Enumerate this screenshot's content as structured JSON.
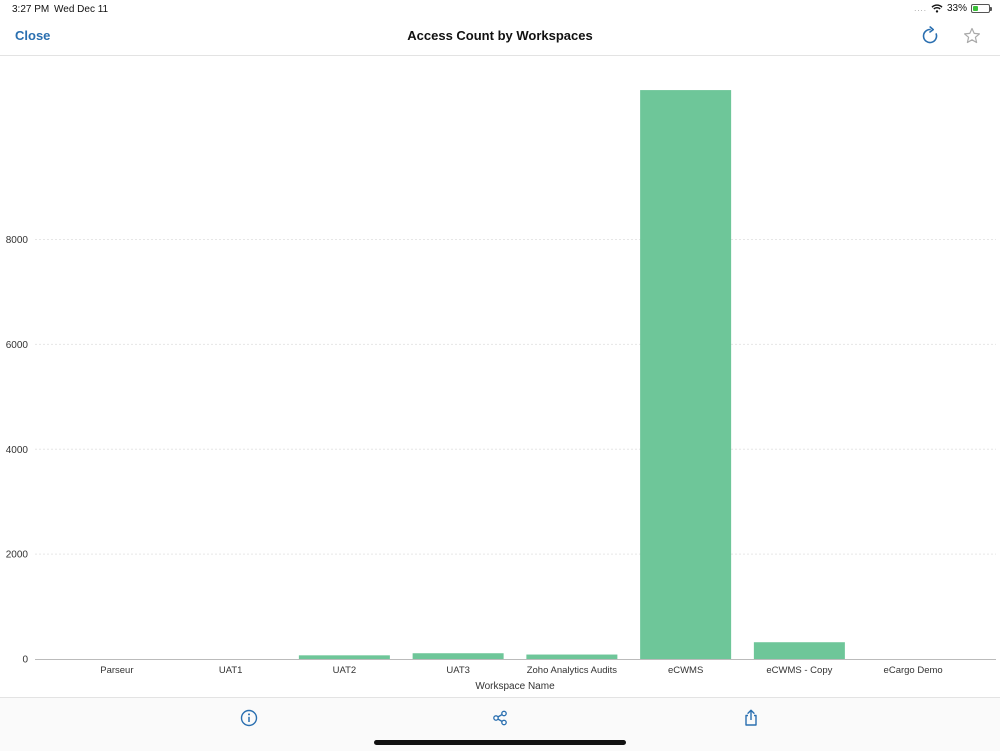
{
  "status_bar": {
    "time": "3:27 PM",
    "date": "Wed Dec 11",
    "signal_dots": "....",
    "battery_percent": "33%",
    "battery_level": 0.33,
    "wifi_icon": "wifi-icon",
    "battery_icon": "battery-icon"
  },
  "nav": {
    "close_label": "Close",
    "title": "Access Count by Workspaces",
    "refresh_icon": "refresh-icon",
    "favorite_icon": "star-icon"
  },
  "toolbar": {
    "info_icon": "info-icon",
    "share_icon": "share-icon",
    "export_icon": "export-icon"
  },
  "colors": {
    "bar": "#6ec699",
    "accent": "#2a6fb0",
    "grid": "#e6e6e6"
  },
  "chart_data": {
    "type": "bar",
    "categories": [
      "Parseur",
      "UAT1",
      "UAT2",
      "UAT3",
      "Zoho Analytics Audits",
      "eCWMS",
      "eCWMS - Copy",
      "eCargo Demo"
    ],
    "values": [
      0,
      0,
      70,
      110,
      85,
      10850,
      320,
      0
    ],
    "xlabel": "Workspace Name",
    "ylabel": "",
    "ylim": [
      0,
      11500
    ],
    "yticks": [
      0,
      2000,
      4000,
      6000,
      8000
    ],
    "grid": true,
    "legend": "none"
  }
}
